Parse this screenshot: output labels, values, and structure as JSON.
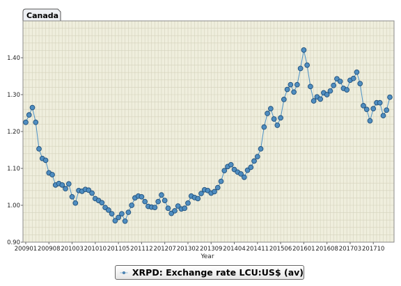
{
  "chart_data": {
    "type": "line",
    "title": "Canada",
    "xlabel": "Year",
    "ylabel": "",
    "ylim": [
      0.9,
      1.5
    ],
    "yticks": [
      "0.90",
      "1.00",
      "1.10",
      "1.20",
      "1.30",
      "1.40"
    ],
    "xticks": [
      "200901",
      "200908",
      "201003",
      "201010",
      "201105",
      "201112",
      "201207",
      "201302",
      "201309",
      "201404",
      "201411",
      "201506",
      "201601",
      "201608",
      "201703",
      "201710"
    ],
    "grid": true,
    "legend_position": "bottom",
    "colors": {
      "line": "#4a90c4",
      "marker_fill": "#4f8dc0",
      "marker_edge": "#1f4f7a",
      "plot_bg": "#efeedd",
      "grid": "#d4d2bc"
    },
    "series": [
      {
        "name": "XRPD: Exchange rate LCU:US$ (av)",
        "values": [
          1.225,
          1.245,
          1.265,
          1.225,
          1.153,
          1.127,
          1.122,
          1.088,
          1.083,
          1.055,
          1.059,
          1.055,
          1.045,
          1.058,
          1.023,
          1.006,
          1.04,
          1.038,
          1.043,
          1.041,
          1.033,
          1.018,
          1.013,
          1.007,
          0.994,
          0.987,
          0.977,
          0.958,
          0.967,
          0.977,
          0.957,
          0.981,
          1.0,
          1.02,
          1.025,
          1.023,
          1.01,
          0.997,
          0.995,
          0.994,
          1.01,
          1.028,
          1.013,
          0.992,
          0.978,
          0.985,
          0.998,
          0.99,
          0.992,
          1.006,
          1.025,
          1.021,
          1.018,
          1.032,
          1.042,
          1.04,
          1.033,
          1.037,
          1.048,
          1.065,
          1.094,
          1.105,
          1.11,
          1.097,
          1.09,
          1.085,
          1.076,
          1.095,
          1.103,
          1.12,
          1.132,
          1.153,
          1.212,
          1.249,
          1.262,
          1.234,
          1.217,
          1.237,
          1.287,
          1.314,
          1.327,
          1.307,
          1.327,
          1.371,
          1.421,
          1.38,
          1.322,
          1.283,
          1.294,
          1.288,
          1.305,
          1.3,
          1.31,
          1.325,
          1.343,
          1.336,
          1.317,
          1.313,
          1.339,
          1.344,
          1.361,
          1.33,
          1.27,
          1.26,
          1.229,
          1.262,
          1.278,
          1.278,
          1.243,
          1.258,
          1.293
        ]
      }
    ]
  }
}
